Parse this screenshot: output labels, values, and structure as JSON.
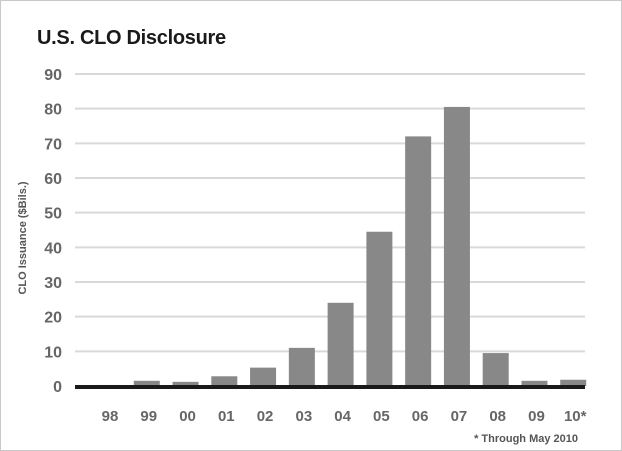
{
  "chart_data": {
    "type": "bar",
    "title": "U.S. CLO Disclosure",
    "ylabel": "CLO Issuance ($Bils.)",
    "xlabel": "",
    "categories": [
      "98",
      "99",
      "00",
      "01",
      "02",
      "03",
      "04",
      "05",
      "06",
      "07",
      "08",
      "09",
      "10*"
    ],
    "values": [
      0.3,
      1.5,
      1.2,
      2.8,
      5.3,
      11.0,
      24.0,
      44.5,
      72.0,
      80.5,
      9.5,
      1.5,
      1.8
    ],
    "ylim": [
      0,
      90
    ],
    "yticks": [
      0,
      10,
      20,
      30,
      40,
      50,
      60,
      70,
      80,
      90
    ],
    "grid": true,
    "legend": "none",
    "footnote": "* Through May 2010",
    "colors": {
      "bar": "#888888",
      "grid": "#d9d9d9",
      "axis": "#1a1a1a"
    }
  }
}
